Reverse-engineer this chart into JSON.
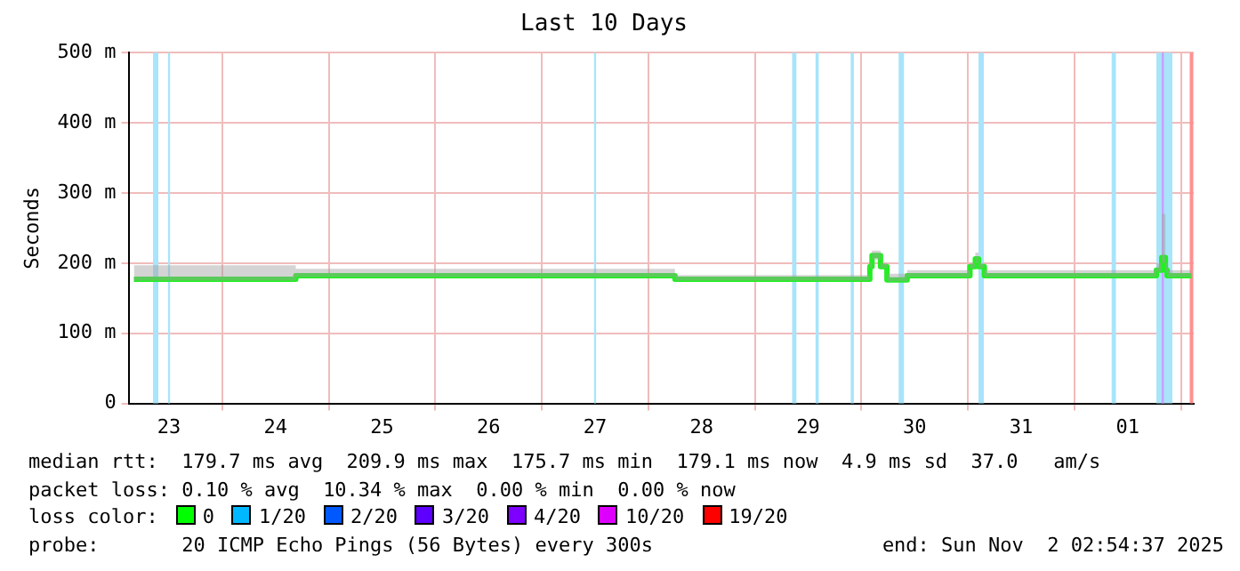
{
  "chart_data": {
    "type": "step",
    "title": "Last 10 Days",
    "ylabel": "Seconds",
    "xlim": [
      "2025-10-23T02:54",
      "2025-11-02T02:54"
    ],
    "xticks": [
      {
        "value": "2025-10-23T12:00",
        "label": "23"
      },
      {
        "value": "2025-10-24",
        "label": null
      },
      {
        "value": "2025-10-24T12:00",
        "label": "24"
      },
      {
        "value": "2025-10-25",
        "label": null
      },
      {
        "value": "2025-10-25T12:00",
        "label": "25"
      },
      {
        "value": "2025-10-26",
        "label": null
      },
      {
        "value": "2025-10-26T12:00",
        "label": "26"
      },
      {
        "value": "2025-10-27",
        "label": null
      },
      {
        "value": "2025-10-27T12:00",
        "label": "27"
      },
      {
        "value": "2025-10-28",
        "label": null
      },
      {
        "value": "2025-10-28T12:00",
        "label": "28"
      },
      {
        "value": "2025-10-29",
        "label": null
      },
      {
        "value": "2025-10-29T12:00",
        "label": "29"
      },
      {
        "value": "2025-10-30",
        "label": null
      },
      {
        "value": "2025-10-30T12:00",
        "label": "30"
      },
      {
        "value": "2025-10-31",
        "label": null
      },
      {
        "value": "2025-10-31T12:00",
        "label": "31"
      },
      {
        "value": "2025-11-01",
        "label": null
      },
      {
        "value": "2025-11-01T12:00",
        "label": "01"
      },
      {
        "value": "2025-11-02",
        "label": null
      }
    ],
    "ylim": [
      0,
      500
    ],
    "yticks": [
      0,
      {
        "value": 100,
        "label": "100 m"
      },
      {
        "value": 200,
        "label": "200 m"
      },
      {
        "value": 300,
        "label": "300 m"
      },
      {
        "value": 400,
        "label": "400 m"
      },
      {
        "value": 500,
        "label": "500 m"
      }
    ],
    "grid": true,
    "series": [
      {
        "color": "#22ee22",
        "x": [
          "2025-10-23T04:05",
          "2025-10-24T16:34",
          "2025-10-28T06:00",
          "2025-10-30T01:55",
          "2025-10-30T02:24",
          "2025-10-30T04:19",
          "2025-10-30T05:46",
          "2025-10-30T10:19",
          "2025-10-31T00:29",
          "2025-10-31T01:41",
          "2025-10-31T02:24",
          "2025-10-31T03:43",
          "2025-11-01T18:29",
          "2025-11-01T19:41",
          "2025-11-01T20:31",
          "2025-11-01T20:53",
          "2025-11-02T02:24"
        ],
        "values": [
          177,
          182,
          177,
          195,
          211,
          195,
          176,
          182,
          195,
          206,
          195,
          182,
          190,
          208,
          190,
          182,
          182
        ],
        "lower": [
          175,
          180,
          175,
          193,
          205,
          193,
          174,
          180,
          193,
          200,
          193,
          180,
          188,
          200,
          188,
          180,
          180
        ],
        "upper": [
          197,
          192,
          183,
          200,
          218,
          200,
          185,
          190,
          200,
          215,
          200,
          190,
          200,
          270,
          200,
          190,
          190
        ]
      }
    ],
    "bands": [
      {
        "axis": "x",
        "from": "2025-10-23T08:24",
        "to": "2025-10-23T09:36",
        "color": "#a8e4fa"
      },
      {
        "axis": "x",
        "from": "2025-10-23T11:46",
        "to": "2025-10-23T12:14",
        "color": "#a8e4fa"
      },
      {
        "axis": "x",
        "from": "2025-10-27T11:46",
        "to": "2025-10-27T12:14",
        "color": "#a8e4fa"
      },
      {
        "axis": "x",
        "from": "2025-10-29T08:24",
        "to": "2025-10-29T09:22",
        "color": "#a8e4fa"
      },
      {
        "axis": "x",
        "from": "2025-10-29T13:41",
        "to": "2025-10-29T14:24",
        "color": "#a8e4fa"
      },
      {
        "axis": "x",
        "from": "2025-10-29T21:36",
        "to": "2025-10-29T22:19",
        "color": "#a8e4fa"
      },
      {
        "axis": "x",
        "from": "2025-10-30T08:24",
        "to": "2025-10-30T09:36",
        "color": "#a8e4fa"
      },
      {
        "axis": "x",
        "from": "2025-10-31T02:24",
        "to": "2025-10-31T03:36",
        "color": "#a8e4fa"
      },
      {
        "axis": "x",
        "from": "2025-11-01T08:24",
        "to": "2025-11-01T09:22",
        "color": "#a8e4fa"
      },
      {
        "axis": "x",
        "from": "2025-11-01T18:29",
        "to": "2025-11-01T22:05",
        "color": "#a8e4fa"
      },
      {
        "axis": "x",
        "from": "2025-11-01T19:41",
        "to": "2025-11-01T20:10",
        "color": "#c8a0fa"
      }
    ],
    "ref_lines": [
      {
        "axis": "x",
        "value": "2025-11-02T02:24",
        "color": "#ff9090"
      }
    ],
    "annotations": [
      "median rtt:  179.7 ms avg  209.9 ms max  175.7 ms min  179.1 ms now  4.9 ms sd  37.0   am/s",
      "packet loss: 0.10 % avg  10.34 % max  0.00 % min  0.00 % now",
      "loss color:",
      "0",
      "1/20",
      "2/20",
      "3/20",
      "4/20",
      "10/20",
      "19/20",
      "probe:       20 ICMP Echo Pings (56 Bytes) every 300s",
      "end: Sun Nov  2 02:54:37 2025"
    ]
  }
}
